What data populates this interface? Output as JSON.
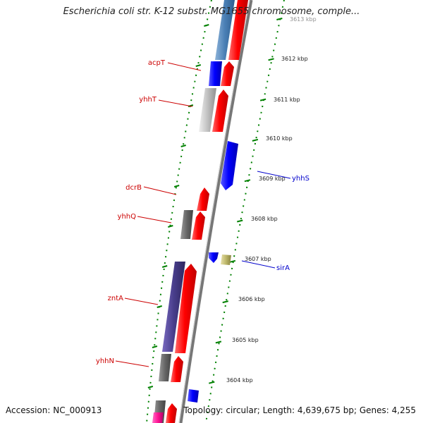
{
  "title": "Escherichia coli str. K-12 substr. MG1655 chromosome, comple...",
  "footer": {
    "accession": "Accession: NC_000913",
    "topology": "Topology: circular; Length: 4,639,675 bp; Genes: 4,255"
  },
  "colors": {
    "forward": "#ff0000",
    "reverse": "#0000ff",
    "tick": "#008000",
    "label_left": "#cc0000",
    "label_right": "#0000cc"
  },
  "scale_ticks": [
    {
      "label": "3613 kbp",
      "kbp": 3613
    },
    {
      "label": "3612 kbp",
      "kbp": 3612
    },
    {
      "label": "3611 kbp",
      "kbp": 3611
    },
    {
      "label": "3610 kbp",
      "kbp": 3610
    },
    {
      "label": "3609 kbp",
      "kbp": 3609
    },
    {
      "label": "3608 kbp",
      "kbp": 3608
    },
    {
      "label": "3607 kbp",
      "kbp": 3607
    },
    {
      "label": "3606 kbp",
      "kbp": 3606
    },
    {
      "label": "3605 kbp",
      "kbp": 3605
    },
    {
      "label": "3604 kbp",
      "kbp": 3604
    }
  ],
  "gene_labels": [
    {
      "name": "acpT",
      "side": "left"
    },
    {
      "name": "yhhT",
      "side": "left"
    },
    {
      "name": "yhhS",
      "side": "right"
    },
    {
      "name": "dcrB",
      "side": "left"
    },
    {
      "name": "yhhQ",
      "side": "left"
    },
    {
      "name": "sirA",
      "side": "right"
    },
    {
      "name": "zntA",
      "side": "left"
    },
    {
      "name": "yhhN",
      "side": "left"
    }
  ]
}
